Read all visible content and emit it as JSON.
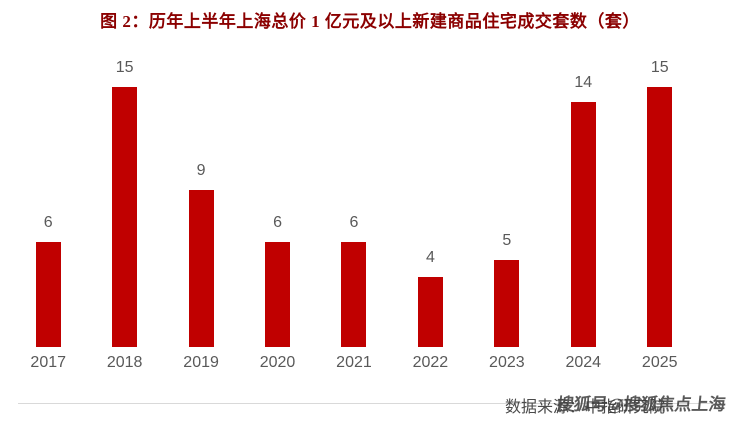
{
  "chart_data": {
    "type": "bar",
    "title": "图 2：历年上半年上海总价 1 亿元及以上新建商品住宅成交套数（套）",
    "categories": [
      "2017",
      "2018",
      "2019",
      "2020",
      "2021",
      "2022",
      "2023",
      "2024",
      "2025"
    ],
    "values": [
      6,
      15,
      9,
      6,
      6,
      4,
      5,
      14,
      15
    ],
    "xlabel": "",
    "ylabel": "",
    "ylim": [
      0,
      16
    ],
    "grid": false,
    "legend": false,
    "bar_color": "#C00000",
    "value_label_color": "#595959",
    "tick_label_color": "#595959",
    "axis_line_color": "#d9d9d9",
    "title_color": "#8B0000"
  },
  "footer": {
    "source_text": "数据来源：中指研究院",
    "watermark_text": "搜狐号@搜狐焦点上海"
  }
}
